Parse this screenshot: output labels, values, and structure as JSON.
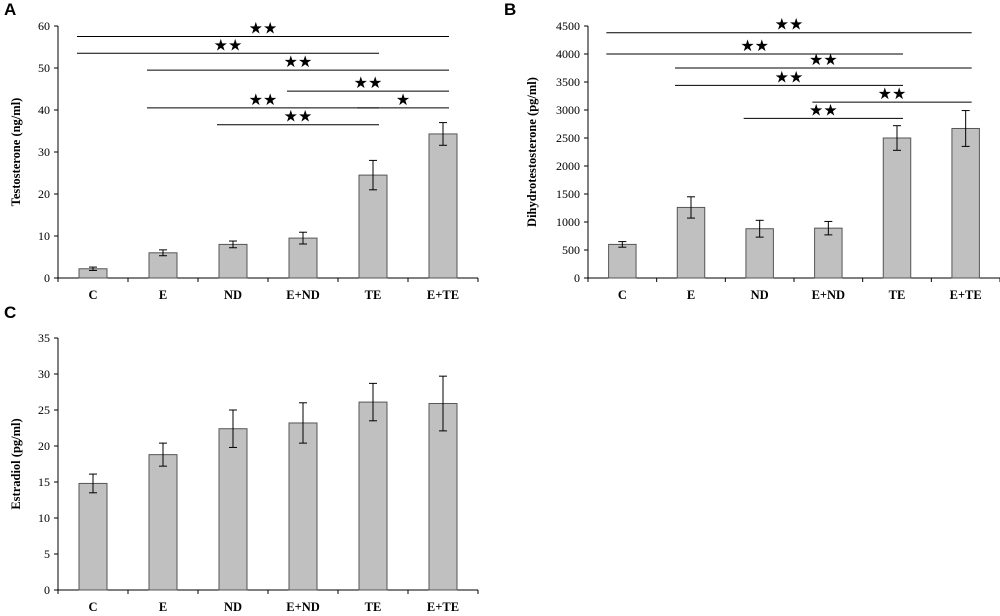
{
  "colors": {
    "bar_fill": "#c0c0c0",
    "bar_stroke": "#555555",
    "axis": "#000000",
    "line": "#000000"
  },
  "chart_data": [
    {
      "id": "A",
      "type": "bar",
      "panel_label": "A",
      "categories": [
        "C",
        "E",
        "ND",
        "E+ND",
        "TE",
        "E+TE"
      ],
      "values": [
        2.2,
        6.0,
        8.0,
        9.5,
        24.5,
        34.3
      ],
      "errors": [
        0.4,
        0.7,
        0.8,
        1.4,
        3.5,
        2.7
      ],
      "ylabel": "Testosterone (ng/ml)",
      "ylim": [
        0,
        60
      ],
      "yticks": [
        0,
        10,
        20,
        30,
        40,
        50,
        60
      ],
      "significance": [
        {
          "from": 0,
          "to": 5,
          "y": 57.5,
          "label": "★★"
        },
        {
          "from": 0,
          "to": 4,
          "y": 53.5,
          "label": "★★"
        },
        {
          "from": 1,
          "to": 5,
          "y": 49.5,
          "label": "★★"
        },
        {
          "from": 3,
          "to": 5,
          "y": 44.5,
          "label": "★★"
        },
        {
          "from": 1,
          "to": 4,
          "y": 40.5,
          "label": "★★"
        },
        {
          "from": 4,
          "to": 5,
          "y": 40.5,
          "label": "★"
        },
        {
          "from": 2,
          "to": 4,
          "y": 36.5,
          "label": "★★"
        }
      ]
    },
    {
      "id": "B",
      "type": "bar",
      "panel_label": "B",
      "categories": [
        "C",
        "E",
        "ND",
        "E+ND",
        "TE",
        "E+TE"
      ],
      "values": [
        600,
        1260,
        880,
        890,
        2500,
        2670
      ],
      "errors": [
        50,
        190,
        150,
        120,
        220,
        320
      ],
      "ylabel": "Dihydrotestosterone (pg/ml)",
      "ylim": [
        0,
        4500
      ],
      "yticks": [
        0,
        500,
        1000,
        1500,
        2000,
        2500,
        3000,
        3500,
        4000,
        4500
      ],
      "significance": [
        {
          "from": 0,
          "to": 5,
          "y": 4380,
          "label": "★★"
        },
        {
          "from": 0,
          "to": 4,
          "y": 4000,
          "label": "★★"
        },
        {
          "from": 1,
          "to": 5,
          "y": 3750,
          "label": "★★"
        },
        {
          "from": 1,
          "to": 4,
          "y": 3440,
          "label": "★★"
        },
        {
          "from": 3,
          "to": 5,
          "y": 3140,
          "label": "★★"
        },
        {
          "from": 2,
          "to": 4,
          "y": 2850,
          "label": "★★"
        }
      ]
    },
    {
      "id": "C",
      "type": "bar",
      "panel_label": "C",
      "categories": [
        "C",
        "E",
        "ND",
        "E+ND",
        "TE",
        "E+TE"
      ],
      "values": [
        14.8,
        18.8,
        22.4,
        23.2,
        26.1,
        25.9
      ],
      "errors": [
        1.3,
        1.6,
        2.6,
        2.8,
        2.6,
        3.8
      ],
      "ylabel": "Estradiol (pg/ml)",
      "ylim": [
        0,
        35
      ],
      "yticks": [
        0,
        5,
        10,
        15,
        20,
        25,
        30,
        35
      ],
      "significance": []
    }
  ]
}
